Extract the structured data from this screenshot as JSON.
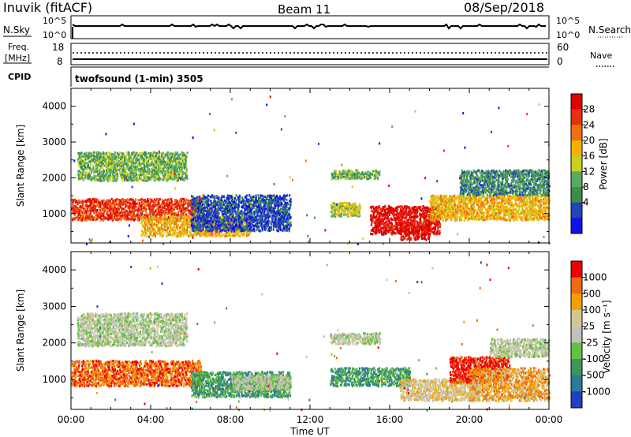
{
  "header": {
    "station": "Inuvik (fitACF)",
    "beam": "Beam 11",
    "date": "08/Sep/2018"
  },
  "top_panels": {
    "sky_label": "N.Sky",
    "sky_ticks": [
      "10^5",
      "10^0"
    ],
    "search_label": "N.Search",
    "search_ticks": [
      "10^5",
      "10^0"
    ],
    "freq_label_1": "Freq.",
    "freq_label_2": "[MHz]",
    "freq_ticks": [
      "18",
      "8"
    ],
    "nave_label": "Nave",
    "nave_ticks": [
      "60",
      "0"
    ],
    "cpid_label": "CPID",
    "cpid_text": "twofsound (1-min) 3505"
  },
  "colors": {
    "power_scale": [
      "#1010e8",
      "#2244b8",
      "#3c8c4c",
      "#5aa862",
      "#c8d020",
      "#f8b000",
      "#f07010",
      "#e83010",
      "#e00000"
    ],
    "velocity_scale": [
      "#2040c0",
      "#2b7a9a",
      "#3c9658",
      "#64c040",
      "#c0c0bc",
      "#d0c890",
      "#f5a000",
      "#ef6a10",
      "#ee0000"
    ]
  },
  "chart_data": [
    {
      "type": "heatmap",
      "name": "power",
      "ylabel": "Slant Range [km]",
      "xlabel": "Time UT",
      "x_ticks": [
        "00:00",
        "04:00",
        "08:00",
        "12:00",
        "16:00",
        "20:00",
        "00:00"
      ],
      "y_ticks": [
        1000,
        2000,
        3000,
        4000
      ],
      "ylim": [
        180,
        4500
      ],
      "xlim_hours": [
        0,
        24
      ],
      "colorbar_label": "Power [dB]",
      "colorbar_ticks": [
        "28",
        "24",
        "20",
        "16",
        "12",
        "8",
        "4"
      ],
      "echo_regions": [
        {
          "t": [
            0.3,
            5.8
          ],
          "r": [
            1900,
            2700
          ],
          "level": 3
        },
        {
          "t": [
            0.0,
            6.5
          ],
          "r": [
            800,
            1400
          ],
          "level": 7
        },
        {
          "t": [
            3.5,
            9.0
          ],
          "r": [
            350,
            900
          ],
          "level": 5
        },
        {
          "t": [
            6.0,
            11.0
          ],
          "r": [
            500,
            1500
          ],
          "level": 1
        },
        {
          "t": [
            13.0,
            15.5
          ],
          "r": [
            1950,
            2200
          ],
          "level": 3
        },
        {
          "t": [
            13.0,
            14.5
          ],
          "r": [
            900,
            1300
          ],
          "level": 4
        },
        {
          "t": [
            15.0,
            18.5
          ],
          "r": [
            400,
            1200
          ],
          "level": 8
        },
        {
          "t": [
            16.5,
            18.0
          ],
          "r": [
            250,
            700
          ],
          "level": 8
        },
        {
          "t": [
            18.0,
            24.0
          ],
          "r": [
            800,
            1500
          ],
          "level": 5
        },
        {
          "t": [
            19.5,
            24.0
          ],
          "r": [
            1500,
            2200
          ],
          "level": 2
        }
      ]
    },
    {
      "type": "heatmap",
      "name": "velocity",
      "ylabel": "Slant Range [km]",
      "xlabel": "Time UT",
      "x_ticks": [
        "00:00",
        "04:00",
        "08:00",
        "12:00",
        "16:00",
        "20:00",
        "00:00"
      ],
      "y_ticks": [
        1000,
        2000,
        3000,
        4000
      ],
      "ylim": [
        180,
        4500
      ],
      "xlim_hours": [
        0,
        24
      ],
      "colorbar_label": "Velocity [m s⁻¹]",
      "colorbar_ticks": [
        "1000",
        "500",
        "100",
        "25",
        "-25",
        "-100",
        "-500",
        "-1000"
      ],
      "echo_regions": [
        {
          "t": [
            0.3,
            5.8
          ],
          "r": [
            1900,
            2800
          ],
          "level": 4
        },
        {
          "t": [
            0.0,
            6.5
          ],
          "r": [
            800,
            1500
          ],
          "level": 7
        },
        {
          "t": [
            6.0,
            11.0
          ],
          "r": [
            500,
            1200
          ],
          "level": 2
        },
        {
          "t": [
            8.0,
            11.0
          ],
          "r": [
            700,
            1100
          ],
          "level": 4
        },
        {
          "t": [
            13.0,
            15.5
          ],
          "r": [
            1950,
            2250
          ],
          "level": 4
        },
        {
          "t": [
            13.0,
            17.0
          ],
          "r": [
            800,
            1300
          ],
          "level": 2
        },
        {
          "t": [
            16.5,
            20.5
          ],
          "r": [
            400,
            1000
          ],
          "level": 5
        },
        {
          "t": [
            19.0,
            22.0
          ],
          "r": [
            900,
            1600
          ],
          "level": 8
        },
        {
          "t": [
            20.0,
            24.0
          ],
          "r": [
            400,
            1300
          ],
          "level": 6
        },
        {
          "t": [
            21.0,
            24.0
          ],
          "r": [
            1600,
            2100
          ],
          "level": 4
        }
      ]
    }
  ]
}
